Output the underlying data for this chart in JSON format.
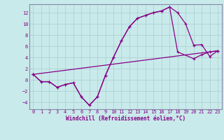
{
  "xlabel": "Windchill (Refroidissement éolien,°C)",
  "bg_color": "#c8eaea",
  "line_color": "#880088",
  "grid_color": "#aacccc",
  "spine_color": "#8888aa",
  "xlim": [
    -0.5,
    23.5
  ],
  "ylim": [
    -5.2,
    13.5
  ],
  "xticks": [
    0,
    1,
    2,
    3,
    4,
    5,
    6,
    7,
    8,
    9,
    10,
    11,
    12,
    13,
    14,
    15,
    16,
    17,
    18,
    19,
    20,
    21,
    22,
    23
  ],
  "yticks": [
    -4,
    -2,
    0,
    2,
    4,
    6,
    8,
    10,
    12
  ],
  "line1_x": [
    0,
    1,
    2,
    3,
    4,
    5,
    6,
    7,
    8,
    9,
    10,
    11,
    12,
    13,
    14,
    15,
    16,
    17,
    18,
    19,
    20,
    21,
    22,
    23
  ],
  "line1_y": [
    1.0,
    -0.3,
    -0.3,
    -1.3,
    -0.8,
    -0.5,
    -3.0,
    -4.5,
    -3.0,
    0.8,
    4.0,
    7.0,
    9.5,
    11.0,
    11.5,
    12.0,
    12.3,
    13.0,
    12.0,
    10.0,
    6.2,
    6.3,
    4.2,
    5.2
  ],
  "line2_x": [
    0,
    1,
    2,
    3,
    4,
    5,
    6,
    7,
    8,
    9,
    10,
    11,
    12,
    13,
    14,
    15,
    16,
    17,
    18,
    20,
    21,
    22,
    23
  ],
  "line2_y": [
    1.0,
    -0.3,
    -0.3,
    -1.3,
    -0.8,
    -0.5,
    -3.0,
    -4.5,
    -3.0,
    0.8,
    4.0,
    7.0,
    9.5,
    11.0,
    11.5,
    12.0,
    12.3,
    13.0,
    5.0,
    3.8,
    4.5,
    5.0,
    5.2
  ],
  "line3_x": [
    0,
    23
  ],
  "line3_y": [
    1.0,
    5.2
  ],
  "figsize": [
    3.2,
    2.0
  ],
  "dpi": 100,
  "tick_fontsize": 5.0,
  "xlabel_fontsize": 5.5
}
